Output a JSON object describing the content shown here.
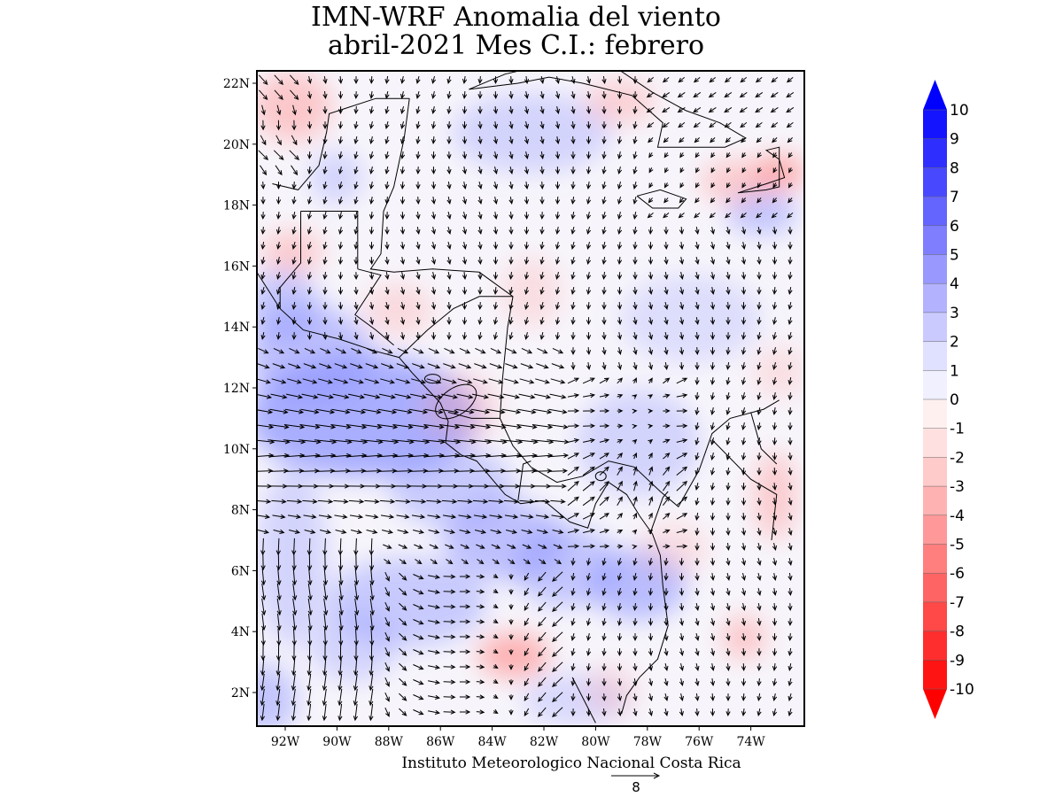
{
  "title": {
    "line1": "IMN-WRF Anomalia del viento",
    "line2": "abril-2021 Mes C.I.: febrero"
  },
  "credit": "Instituto Meteorologico Nacional Costa Rica",
  "reference_vector": {
    "label": "8",
    "magnitude": 8
  },
  "axes": {
    "lat_ticks": [
      "22N",
      "20N",
      "18N",
      "16N",
      "14N",
      "12N",
      "10N",
      "8N",
      "6N",
      "4N",
      "2N"
    ],
    "lon_ticks": [
      "92W",
      "90W",
      "88W",
      "86W",
      "84W",
      "82W",
      "80W",
      "78W",
      "76W",
      "74W"
    ],
    "lat_range": [
      1,
      22.5
    ],
    "lon_range": [
      -93.1,
      -72.9
    ]
  },
  "colorbar": {
    "labels": [
      "10",
      "9",
      "8",
      "7",
      "6",
      "5",
      "4",
      "3",
      "2",
      "1",
      "0",
      "-1",
      "-2",
      "-3",
      "-4",
      "-5",
      "-6",
      "-7",
      "-8",
      "-9",
      "-10"
    ],
    "colors": [
      "#1414ff",
      "#2e2eff",
      "#4848ff",
      "#6464ff",
      "#7e7eff",
      "#9898ff",
      "#b2b2ff",
      "#cacaff",
      "#e0e0ff",
      "#f0f0ff",
      "#fff0f0",
      "#ffe0e0",
      "#ffcaca",
      "#ffb2b2",
      "#ff9898",
      "#ff7e7e",
      "#ff6464",
      "#ff4848",
      "#ff2e2e",
      "#ff1414"
    ],
    "upper_arrow_color": "#0000ff",
    "lower_arrow_color": "#ff0000"
  }
}
